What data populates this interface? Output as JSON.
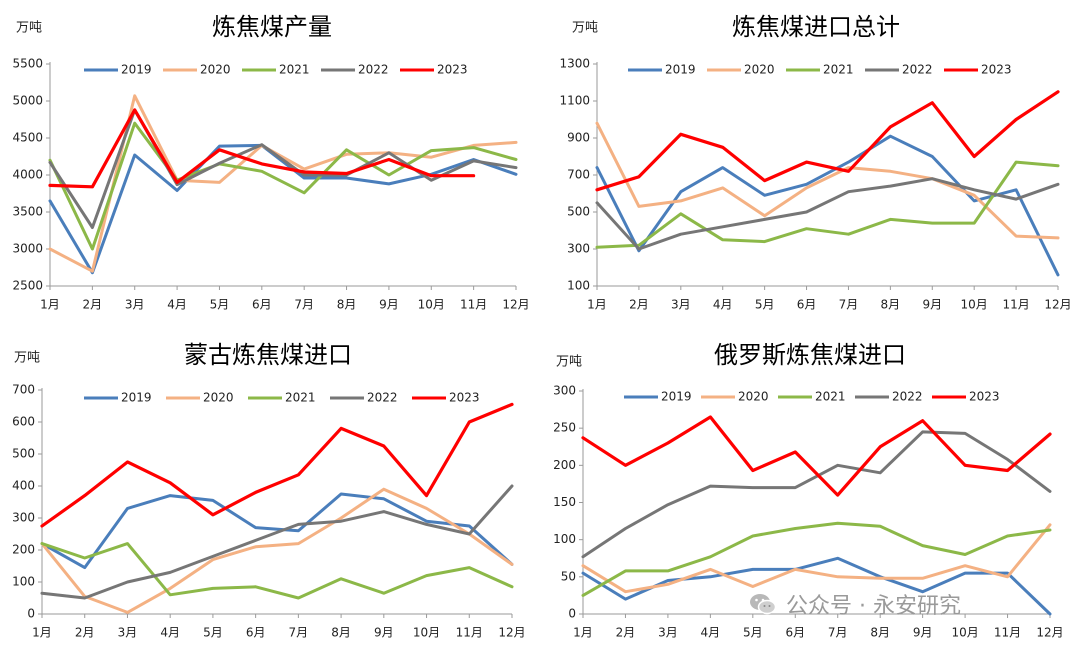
{
  "palette": {
    "2019": "#4a7ebb",
    "2020": "#f4b183",
    "2021": "#8cb848",
    "2022": "#767676",
    "2023": "#ff0000"
  },
  "months": [
    "1月",
    "2月",
    "3月",
    "4月",
    "5月",
    "6月",
    "7月",
    "8月",
    "9月",
    "10月",
    "11月",
    "12月"
  ],
  "watermark": {
    "text": "公众号 · 永安研究",
    "icon": "wechat-icon"
  },
  "chart_data": [
    {
      "id": "coke-output",
      "type": "line",
      "title": "炼焦煤产量",
      "unit_label": "万吨",
      "ylim": [
        2500,
        5500
      ],
      "yticks": [
        2500,
        3000,
        3500,
        4000,
        4500,
        5000,
        5500
      ],
      "legend": "top",
      "series": [
        {
          "name": "2019",
          "values": [
            3650,
            2680,
            4270,
            3790,
            4390,
            4400,
            3960,
            3960,
            3880,
            4010,
            4210,
            4010
          ]
        },
        {
          "name": "2020",
          "values": [
            3000,
            2700,
            5070,
            3930,
            3900,
            4400,
            4080,
            4280,
            4300,
            4240,
            4400,
            4440
          ]
        },
        {
          "name": "2021",
          "values": [
            4200,
            3000,
            4700,
            3930,
            4150,
            4050,
            3760,
            4340,
            4000,
            4330,
            4370,
            4210
          ]
        },
        {
          "name": "2022",
          "values": [
            4170,
            3290,
            4880,
            3870,
            4160,
            4410,
            4000,
            4000,
            4300,
            3930,
            4190,
            4100
          ]
        },
        {
          "name": "2023",
          "values": [
            3860,
            3840,
            4880,
            3900,
            4340,
            4150,
            4040,
            4020,
            4210,
            3990,
            3990,
            null
          ]
        }
      ]
    },
    {
      "id": "coke-import-total",
      "type": "line",
      "title": "炼焦煤进口总计",
      "unit_label": "万吨",
      "ylim": [
        100,
        1300
      ],
      "yticks": [
        100,
        300,
        500,
        700,
        900,
        1100,
        1300
      ],
      "legend": "top",
      "series": [
        {
          "name": "2019",
          "values": [
            740,
            290,
            610,
            740,
            590,
            650,
            770,
            910,
            800,
            560,
            620,
            160
          ]
        },
        {
          "name": "2020",
          "values": [
            980,
            530,
            560,
            630,
            480,
            630,
            740,
            720,
            680,
            590,
            370,
            360
          ]
        },
        {
          "name": "2021",
          "values": [
            310,
            320,
            490,
            350,
            340,
            410,
            380,
            460,
            440,
            440,
            770,
            750
          ]
        },
        {
          "name": "2022",
          "values": [
            550,
            300,
            380,
            420,
            460,
            500,
            610,
            640,
            680,
            620,
            570,
            650
          ]
        },
        {
          "name": "2023",
          "values": [
            620,
            690,
            920,
            850,
            670,
            770,
            720,
            960,
            1090,
            800,
            1000,
            1150
          ]
        }
      ]
    },
    {
      "id": "mongolia-import",
      "type": "line",
      "title": "蒙古炼焦煤进口",
      "unit_label": "万吨",
      "ylim": [
        0,
        700
      ],
      "yticks": [
        0,
        100,
        200,
        300,
        400,
        500,
        600,
        700
      ],
      "legend": "top",
      "series": [
        {
          "name": "2019",
          "values": [
            220,
            145,
            330,
            370,
            355,
            270,
            260,
            375,
            360,
            290,
            275,
            155
          ]
        },
        {
          "name": "2020",
          "values": [
            220,
            55,
            5,
            80,
            170,
            210,
            220,
            300,
            390,
            330,
            250,
            155
          ]
        },
        {
          "name": "2021",
          "values": [
            220,
            175,
            220,
            60,
            80,
            85,
            50,
            110,
            65,
            120,
            145,
            85
          ]
        },
        {
          "name": "2022",
          "values": [
            65,
            50,
            100,
            130,
            180,
            230,
            280,
            290,
            320,
            280,
            250,
            400
          ]
        },
        {
          "name": "2023",
          "values": [
            275,
            370,
            475,
            410,
            310,
            380,
            435,
            580,
            525,
            370,
            600,
            655
          ]
        }
      ]
    },
    {
      "id": "russia-import",
      "type": "line",
      "title": "俄罗斯炼焦煤进口",
      "unit_label": "万吨",
      "ylim": [
        0,
        300
      ],
      "yticks": [
        0,
        50,
        100,
        150,
        200,
        250,
        300
      ],
      "legend": "top",
      "series": [
        {
          "name": "2019",
          "values": [
            55,
            20,
            45,
            50,
            60,
            60,
            75,
            50,
            30,
            55,
            55,
            0
          ]
        },
        {
          "name": "2020",
          "values": [
            65,
            30,
            40,
            60,
            37,
            60,
            50,
            48,
            48,
            65,
            50,
            120
          ]
        },
        {
          "name": "2021",
          "values": [
            25,
            58,
            58,
            77,
            105,
            115,
            122,
            118,
            92,
            80,
            105,
            113
          ]
        },
        {
          "name": "2022",
          "values": [
            77,
            115,
            147,
            172,
            170,
            170,
            200,
            190,
            245,
            243,
            208,
            165
          ]
        },
        {
          "name": "2023",
          "values": [
            237,
            200,
            230,
            265,
            193,
            218,
            160,
            225,
            260,
            200,
            193,
            242
          ]
        }
      ]
    }
  ]
}
